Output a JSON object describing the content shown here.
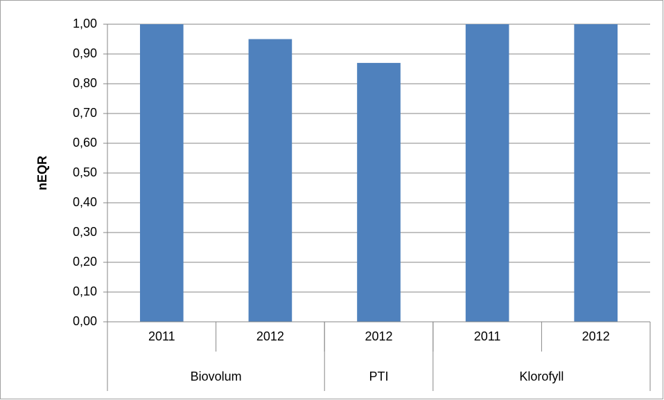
{
  "chart_data": {
    "type": "bar",
    "ylabel": "nEQR",
    "categories": [
      "2011",
      "2012",
      "2012",
      "2011",
      "2012"
    ],
    "groups": [
      {
        "label": "Biovolum",
        "span": 2
      },
      {
        "label": "PTI",
        "span": 1
      },
      {
        "label": "Klorofyll",
        "span": 2
      }
    ],
    "values": [
      1.0,
      0.95,
      0.87,
      1.0,
      1.0
    ],
    "color": "#4f81bd",
    "ylim": [
      0,
      1
    ],
    "yticks": [
      {
        "value": 0,
        "label": "0,00"
      },
      {
        "value": 0.1,
        "label": "0,10"
      },
      {
        "value": 0.2,
        "label": "0,20"
      },
      {
        "value": 0.3,
        "label": "0,30"
      },
      {
        "value": 0.4,
        "label": "0,40"
      },
      {
        "value": 0.5,
        "label": "0,50"
      },
      {
        "value": 0.6,
        "label": "0,60"
      },
      {
        "value": 0.7,
        "label": "0,70"
      },
      {
        "value": 0.8,
        "label": "0,80"
      },
      {
        "value": 0.9,
        "label": "0,90"
      },
      {
        "value": 1,
        "label": "1,00"
      }
    ],
    "grid": true
  }
}
